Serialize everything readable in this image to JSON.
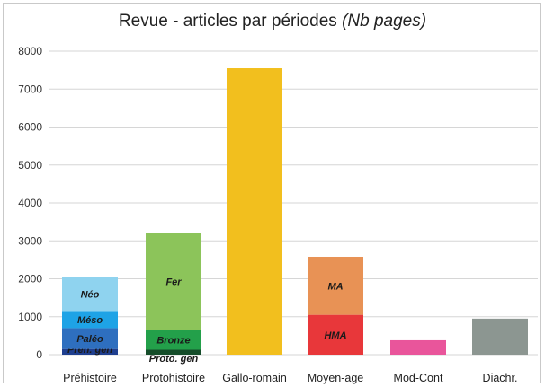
{
  "chart_data": {
    "type": "bar",
    "stacked": true,
    "title_main": "Revue - articles par périodes ",
    "title_italic": "(Nb pages)",
    "xlabel": "",
    "ylabel": "",
    "ylim": [
      0,
      8000
    ],
    "yticks": [
      0,
      1000,
      2000,
      3000,
      4000,
      5000,
      6000,
      7000,
      8000
    ],
    "grid": true,
    "legend": "none",
    "categories": [
      "Préhistoire",
      "Protohistoire",
      "Gallo-romain",
      "Moyen-age",
      "Mod-Cont",
      "Diachr."
    ],
    "bars": [
      {
        "category": "Préhistoire",
        "segments": [
          {
            "label": "Préh. gen",
            "value": 150,
            "color": "#1f3f8f"
          },
          {
            "label": "Paléo",
            "value": 550,
            "color": "#2e6fbf"
          },
          {
            "label": "Méso",
            "value": 450,
            "color": "#1ea3e6"
          },
          {
            "label": "Néo",
            "value": 900,
            "color": "#8fd3ef"
          }
        ]
      },
      {
        "category": "Protohistoire",
        "segments": [
          {
            "label": "Proto. gen",
            "value": 130,
            "color": "#154d2a"
          },
          {
            "label": "Bronze",
            "value": 520,
            "color": "#23a04a"
          },
          {
            "label": "Fer",
            "value": 2550,
            "color": "#8cc45a"
          }
        ]
      },
      {
        "category": "Gallo-romain",
        "segments": [
          {
            "label": "",
            "value": 7550,
            "color": "#f2bf1e"
          }
        ]
      },
      {
        "category": "Moyen-age",
        "segments": [
          {
            "label": "HMA",
            "value": 1050,
            "color": "#e8373a"
          },
          {
            "label": "MA",
            "value": 1530,
            "color": "#e89255"
          }
        ]
      },
      {
        "category": "Mod-Cont",
        "segments": [
          {
            "label": "",
            "value": 380,
            "color": "#e9559b"
          }
        ]
      },
      {
        "category": "Diachr.",
        "segments": [
          {
            "label": "",
            "value": 950,
            "color": "#8c9691"
          }
        ]
      }
    ]
  }
}
